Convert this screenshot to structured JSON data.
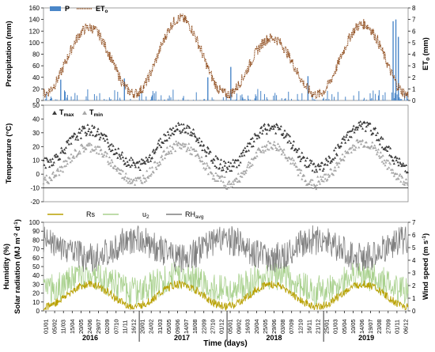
{
  "chart_data": [
    {
      "type": "bar",
      "ylabel_left": "Precipitation (mm)",
      "ylabel_right": "ET",
      "ylabel_right_sub": "o",
      "ylabel_right_unit": "(mm)",
      "ylim_left": [
        0,
        160
      ],
      "ylim_right": [
        0,
        8
      ],
      "yticks_left": [
        "0",
        "20",
        "40",
        "60",
        "80",
        "100",
        "120",
        "140",
        "160"
      ],
      "yticks_right": [
        "0",
        "1",
        "2",
        "3",
        "4",
        "5",
        "6",
        "7",
        "8"
      ],
      "legend_position": "top-left",
      "series": [
        {
          "name": "P",
          "kind": "bar",
          "color": "#4a86c8"
        },
        {
          "name": "ET",
          "name_sub": "o",
          "kind": "dotted-line",
          "color": "#8b4513"
        }
      ],
      "seasonal_peaks_eto": [
        6.3,
        7.1,
        5.4,
        6.6
      ],
      "seasonal_troughs_eto": [
        0.6,
        0.6,
        0.5,
        0.5
      ],
      "notable_precip_peaks_mm": [
        {
          "date": "2016-03-10",
          "value": 36
        },
        {
          "date": "2016-11-20",
          "value": 38
        },
        {
          "date": "2017-10-20",
          "value": 40
        },
        {
          "date": "2018-01-20",
          "value": 58
        },
        {
          "date": "2018-11-25",
          "value": 42
        },
        {
          "date": "2019-11-01",
          "value": 137
        },
        {
          "date": "2019-11-12",
          "value": 140
        },
        {
          "date": "2019-11-22",
          "value": 110
        }
      ]
    },
    {
      "type": "scatter",
      "ylabel": "Temperature (°C)",
      "ylim": [
        -20,
        50
      ],
      "yticks": [
        "-20",
        "-10",
        "0",
        "10",
        "20",
        "30",
        "40",
        "50"
      ],
      "legend_position": "top-left",
      "series": [
        {
          "name": "T",
          "name_sub": "max",
          "marker": "triangle",
          "color": "#3a3a3a"
        },
        {
          "name": "T",
          "name_sub": "min",
          "marker": "triangle",
          "color": "#a6a6a6"
        }
      ],
      "seasonal_peaks_tmax": [
        32,
        34,
        34,
        35
      ],
      "seasonal_troughs_tmax": [
        8,
        6,
        5,
        5
      ],
      "seasonal_peaks_tmin": [
        20,
        21,
        21,
        23
      ],
      "seasonal_troughs_tmin": [
        -4,
        -5,
        -8,
        -5
      ]
    },
    {
      "type": "line",
      "ylabel_left": "Humidity (%)",
      "ylabel_left2": "Solar radiation (MJ m",
      "ylabel_left2_sup": "-2",
      "ylabel_left2_mid": " d",
      "ylabel_left2_sup2": "-1",
      "ylabel_left2_end": ")",
      "ylabel_right": "Wind speed (m s",
      "ylabel_right_sup": "-1",
      "ylabel_right_end": ")",
      "ylim_left": [
        0,
        100
      ],
      "ylim_right": [
        0,
        7
      ],
      "yticks_left": [
        "0",
        "10",
        "20",
        "30",
        "40",
        "50",
        "60",
        "70",
        "80",
        "90",
        "100"
      ],
      "yticks_right": [
        "0",
        "1",
        "2",
        "3",
        "4",
        "5",
        "6",
        "7"
      ],
      "legend_position": "top",
      "series": [
        {
          "name": "Rs",
          "color": "#b8a000"
        },
        {
          "name": "u",
          "name_sub": "2",
          "color": "#a9d18e"
        },
        {
          "name": "RH",
          "name_sub": "avg",
          "color": "#7f7f7f"
        }
      ],
      "xlabel": "Time (days)",
      "x_tick_labels": [
        "01/01",
        "05/02",
        "11/03",
        "15/04",
        "20/05",
        "24/06",
        "29/07",
        "02/09",
        "07/10",
        "11/11",
        "16/12",
        "20/01",
        "24/02",
        "31/03",
        "05/05",
        "09/06",
        "14/07",
        "18/08",
        "22/09",
        "27/10",
        "01/12",
        "05/01",
        "09/02",
        "16/03",
        "20/04",
        "25/05",
        "29/06",
        "03/08",
        "07/09",
        "12/10",
        "16/11",
        "21/12",
        "25/01",
        "01/03",
        "05/04",
        "10/05",
        "14/06",
        "19/07",
        "23/08",
        "27/09",
        "01/11",
        "06/12"
      ],
      "year_labels": [
        "2016",
        "2017",
        "2018",
        "2019"
      ],
      "rh_avg_range_percent": [
        25,
        100
      ],
      "rs_seasonal_peak": 30,
      "rs_seasonal_trough": 5,
      "u2_typical_range": [
        0.5,
        4.0
      ]
    }
  ]
}
